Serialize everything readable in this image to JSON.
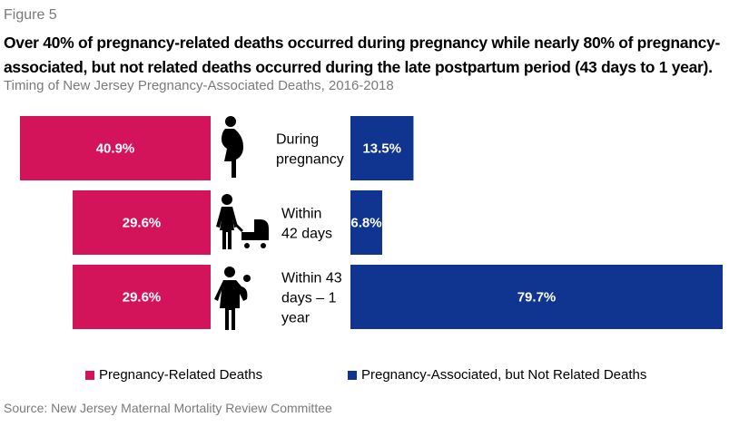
{
  "figure_label": "Figure 5",
  "title": "Over 40% of pregnancy-related deaths occurred during pregnancy while nearly 80% of pregnancy-associated, but not related deaths occurred during the late postpartum period (43 days to 1 year).",
  "subtitle": "Timing of New Jersey Pregnancy-Associated Deaths, 2016-2018",
  "source": "Source: New Jersey Maternal Mortality Review Committee",
  "chart_data": {
    "type": "bar",
    "orientation": "horizontal-diverging",
    "title": "Timing of New Jersey Pregnancy-Associated Deaths, 2016-2018",
    "categories": [
      {
        "label_lines": [
          "During",
          "pregnancy"
        ],
        "icon": "pregnant-woman-icon"
      },
      {
        "label_lines": [
          "Within",
          "42 days"
        ],
        "icon": "woman-with-stroller-icon"
      },
      {
        "label_lines": [
          "Within 43",
          "days – 1",
          "year"
        ],
        "icon": "woman-carrying-baby-icon"
      }
    ],
    "series": [
      {
        "name": "Pregnancy-Related Deaths",
        "color": "#d4145a",
        "direction": "left",
        "values": [
          40.9,
          29.6,
          29.6
        ],
        "labels": [
          "40.9%",
          "29.6%",
          "29.6%"
        ]
      },
      {
        "name": "Pregnancy-Associated, but Not Related Deaths",
        "color": "#0f3591",
        "direction": "right",
        "values": [
          13.5,
          6.8,
          79.7
        ],
        "labels": [
          "13.5%",
          "6.8%",
          "79.7%"
        ]
      }
    ],
    "unit": "%",
    "xlabel": "",
    "ylabel": "",
    "grid": false,
    "legend_position": "bottom"
  }
}
